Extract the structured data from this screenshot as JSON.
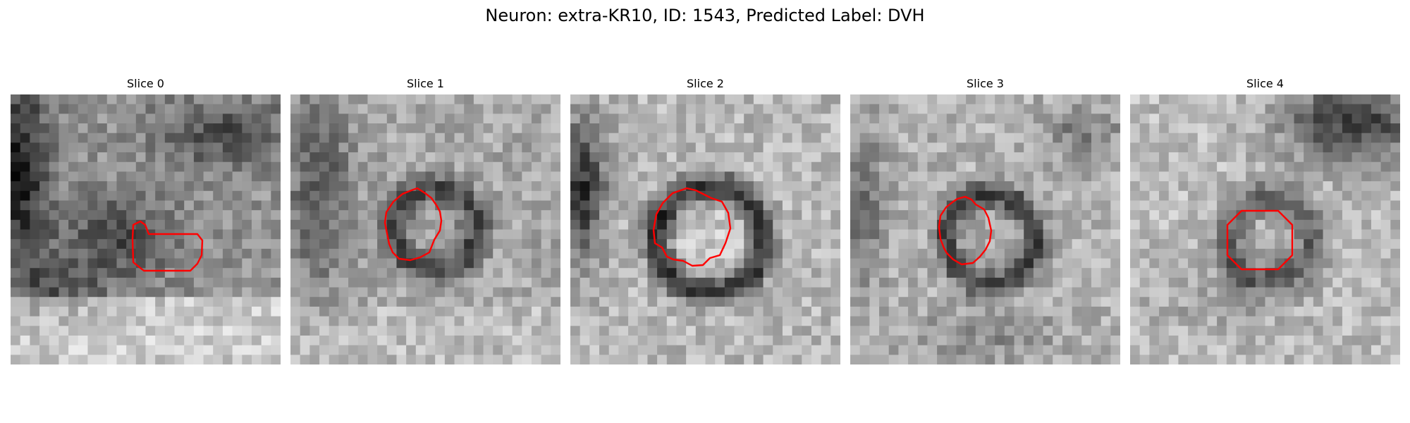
{
  "figure": {
    "title": "Neuron: extra-KR10, ID: 1543, Predicted Label: DVH"
  },
  "colors": {
    "contour": "#ff0000",
    "background": "#ffffff"
  },
  "slices": [
    {
      "title": "Slice 0"
    },
    {
      "title": "Slice 1"
    },
    {
      "title": "Slice 2"
    },
    {
      "title": "Slice 3"
    },
    {
      "title": "Slice 4"
    }
  ]
}
